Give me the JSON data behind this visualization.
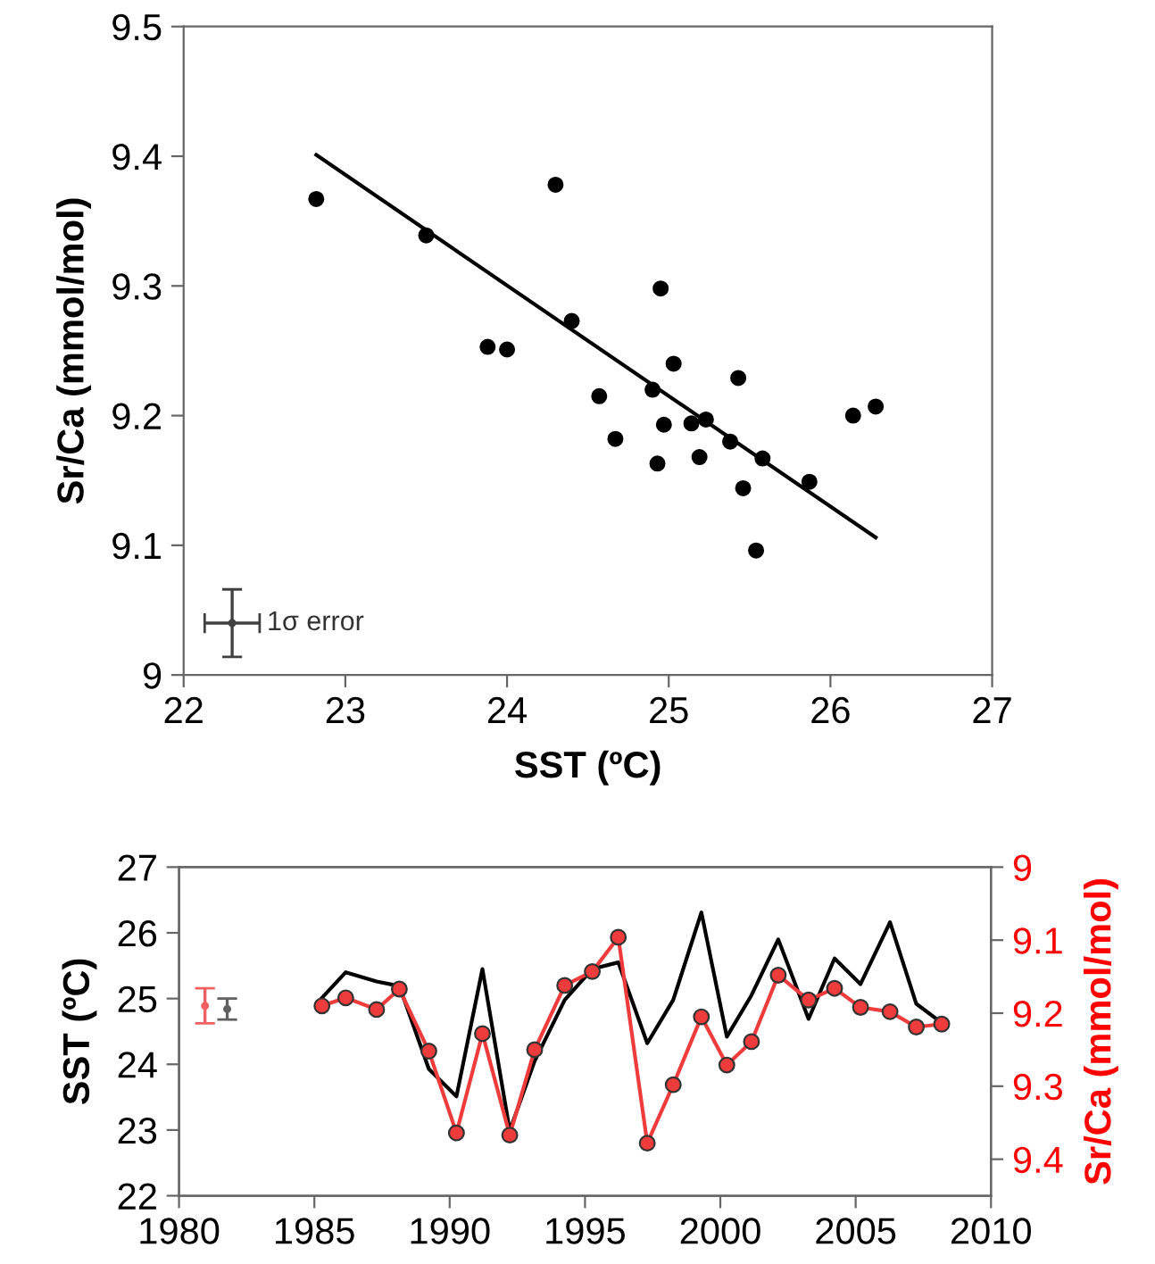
{
  "chart_data": [
    {
      "type": "scatter",
      "xlabel": "SST (ºC)",
      "ylabel": "Sr/Ca (mmol/mol)",
      "xlim": [
        22,
        27
      ],
      "ylim": [
        9,
        9.5
      ],
      "xticks": [
        22,
        23,
        24,
        25,
        26,
        27
      ],
      "yticks": [
        9,
        9.1,
        9.2,
        9.3,
        9.4,
        9.5
      ],
      "grid": false,
      "legend": false,
      "annotations": [
        {
          "text": "1σ error",
          "x": 22.3,
          "y": 9.04
        }
      ],
      "series": [
        {
          "color": "#000000",
          "marker": "circle",
          "x": [
            22.82,
            23.5,
            24.3,
            23.88,
            24.0,
            24.4,
            24.95,
            25.03,
            25.43,
            24.57,
            24.9,
            24.67,
            24.97,
            25.14,
            25.23,
            24.93,
            25.19,
            25.38,
            25.58,
            25.46,
            25.87,
            25.54,
            26.14,
            26.28
          ],
          "values": [
            9.367,
            9.339,
            9.378,
            9.253,
            9.251,
            9.273,
            9.298,
            9.24,
            9.229,
            9.215,
            9.22,
            9.182,
            9.193,
            9.194,
            9.197,
            9.163,
            9.168,
            9.18,
            9.167,
            9.144,
            9.149,
            9.096,
            9.2,
            9.207
          ]
        },
        {
          "type": "line",
          "color": "#000000",
          "marker": "none",
          "x": [
            22.82,
            26.28
          ],
          "values": [
            9.401,
            9.106
          ]
        },
        {
          "color": "#404040",
          "marker": "circle",
          "x": [
            22.3
          ],
          "values": [
            9.04
          ],
          "errors": [
            0.026
          ],
          "xerrors": [
            0.17
          ]
        }
      ]
    },
    {
      "type": "line",
      "ylabel": "SST (ºC)",
      "y2label": "Sr/Ca (mmol/mol)",
      "xlim": [
        1980,
        2010
      ],
      "ylim": [
        22,
        27
      ],
      "y2lim": [
        9.45,
        9
      ],
      "xticks": [
        1980,
        1985,
        1990,
        1995,
        2000,
        2005,
        2010
      ],
      "yticks": [
        22,
        23,
        24,
        25,
        26,
        27
      ],
      "y2ticks": [
        9,
        9.1,
        9.2,
        9.3,
        9.4
      ],
      "grid": false,
      "legend": false,
      "series": [
        {
          "color": "#000000",
          "marker": "none",
          "x": [
            1985.28,
            1986.16,
            1987.3,
            1988.14,
            1989.23,
            1990.25,
            1991.21,
            1992.22,
            1993.14,
            1994.25,
            1995.27,
            1996.23,
            1997.3,
            1998.26,
            1999.3,
            2000.24,
            2001.15,
            2002.14,
            2003.26,
            2004.22,
            2005.18,
            2006.27,
            2007.24,
            2008.18
          ],
          "values": [
            25.01,
            25.4,
            25.26,
            25.19,
            23.93,
            23.51,
            25.45,
            22.99,
            24.05,
            24.98,
            25.45,
            25.55,
            24.32,
            24.98,
            26.31,
            24.42,
            25.05,
            25.9,
            24.69,
            25.61,
            25.22,
            26.16,
            24.92,
            24.63
          ]
        },
        {
          "axis": "y2",
          "color": "#ee3b3b",
          "marker": "circle",
          "x": [
            1985.28,
            1986.16,
            1987.3,
            1988.14,
            1989.23,
            1990.25,
            1991.21,
            1992.22,
            1993.14,
            1994.25,
            1995.27,
            1996.23,
            1997.3,
            1998.26,
            1999.3,
            2000.24,
            2001.15,
            2002.14,
            2003.26,
            2004.22,
            2005.18,
            2006.27,
            2007.24,
            2008.18
          ],
          "values": [
            9.19,
            9.179,
            9.195,
            9.167,
            9.252,
            9.364,
            9.228,
            9.367,
            9.25,
            9.162,
            9.143,
            9.096,
            9.378,
            9.298,
            9.205,
            9.271,
            9.239,
            9.148,
            9.182,
            9.166,
            9.192,
            9.198,
            9.219,
            9.215
          ]
        },
        {
          "type": "scatter",
          "axis": "y2",
          "color": "#f06060",
          "marker": "circle",
          "x": [
            1980.96
          ],
          "values": [
            9.19
          ],
          "errors": [
            0.024
          ]
        },
        {
          "type": "scatter",
          "color": "#606060",
          "marker": "circle",
          "x": [
            1981.78
          ],
          "values": [
            24.84
          ],
          "errors": [
            0.16
          ]
        }
      ]
    }
  ]
}
